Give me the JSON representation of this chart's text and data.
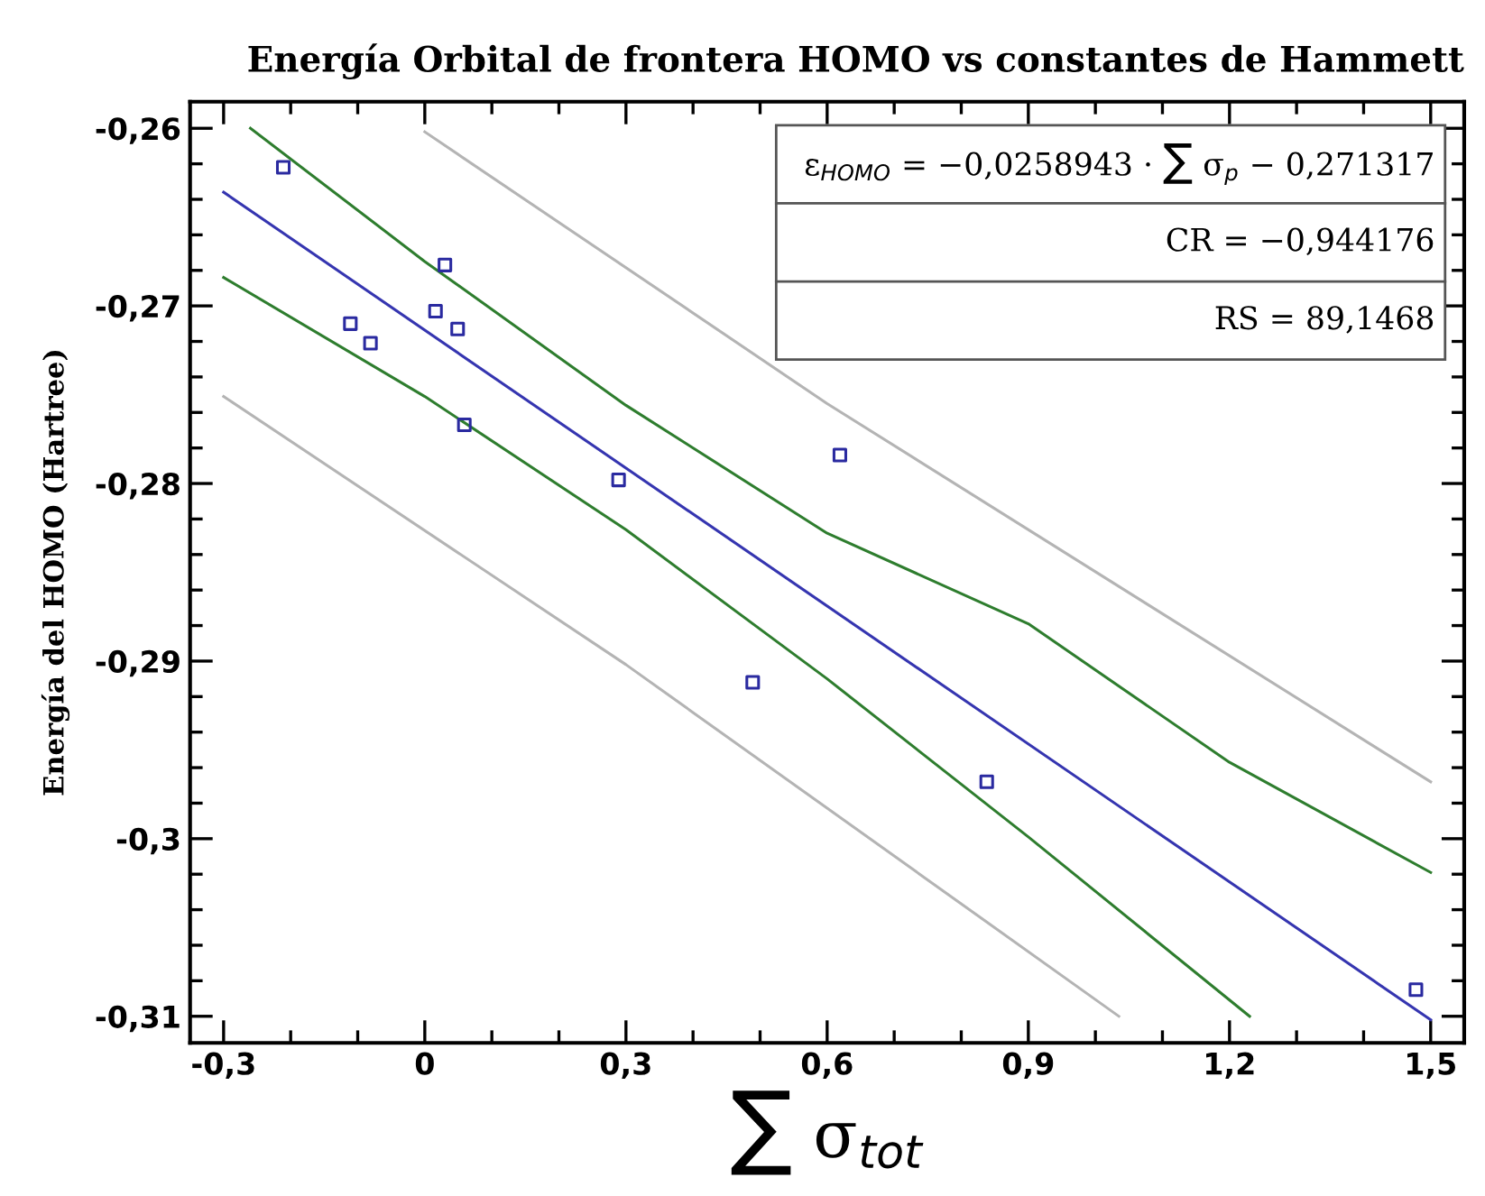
{
  "chart_data": {
    "type": "scatter",
    "title": "Energía Orbital de frontera HOMO vs constantes de Hammett",
    "xlabel": "∑ σ$_{tot}$",
    "ylabel": "Energía del HOMO (Hartree)",
    "annotations": [
      "ε$_{HOMO}$ = −0,0258943 · ∑ σ$_{p}$ − 0,271317",
      "CR = −0,944176",
      "RS = 89,1468"
    ],
    "xlim": [
      -0.35,
      1.55
    ],
    "ylim": [
      -0.3115,
      -0.2585
    ],
    "xticks": [
      {
        "value": -0.3,
        "label": "-0,3"
      },
      0,
      {
        "value": 0.3,
        "label": "0,3"
      },
      {
        "value": 0.6,
        "label": "0,6"
      },
      {
        "value": 0.9,
        "label": "0,9"
      },
      {
        "value": 1.2,
        "label": "1,2"
      },
      {
        "value": 1.5,
        "label": "1,5"
      }
    ],
    "yticks": [
      {
        "value": -0.26,
        "label": "-0,26"
      },
      {
        "value": -0.27,
        "label": "-0,27"
      },
      {
        "value": -0.28,
        "label": "-0,28"
      },
      {
        "value": -0.29,
        "label": "-0,29"
      },
      {
        "value": -0.3,
        "label": "-0,3"
      },
      {
        "value": -0.31,
        "label": "-0,31"
      }
    ],
    "grid": false,
    "series": [
      {
        "marker": "square",
        "color": "#2a2aa0",
        "x": [
          -0.211,
          -0.111,
          -0.081,
          0.016,
          0.03,
          0.049,
          0.059,
          0.289,
          0.619,
          0.489,
          0.838,
          1.478
        ],
        "values": [
          -0.2622,
          -0.271,
          -0.2721,
          -0.2703,
          -0.2677,
          -0.2713,
          -0.2767,
          -0.2798,
          -0.2784,
          -0.2912,
          -0.2968,
          -0.3085
        ]
      },
      {
        "type": "line",
        "marker": "none",
        "color": "#3535b0",
        "x": [
          -0.3,
          1.5
        ],
        "values": [
          -0.2636,
          -0.3102
        ]
      },
      {
        "type": "line",
        "marker": "none",
        "color": "#2e7d2e",
        "x": [
          -0.26,
          0,
          0.3,
          0.6,
          0.9,
          1.2,
          1.5
        ],
        "values": [
          -0.26,
          -0.2675,
          -0.2756,
          -0.2828,
          -0.2879,
          -0.2957,
          -0.3019
        ]
      },
      {
        "type": "line",
        "marker": "none",
        "color": "#2e7d2e",
        "x": [
          -0.3,
          0,
          0.3,
          0.6,
          0.9,
          1.23
        ],
        "values": [
          -0.2684,
          -0.2751,
          -0.2826,
          -0.291,
          -0.2999,
          -0.31
        ]
      },
      {
        "type": "line",
        "marker": "none",
        "color": "#b4b4b4",
        "x": [
          0,
          0.6,
          1.5
        ],
        "values": [
          -0.2602,
          -0.2755,
          -0.2968
        ]
      },
      {
        "type": "line",
        "marker": "none",
        "color": "#b4b4b4",
        "x": [
          -0.3,
          0.3,
          1.035
        ],
        "values": [
          -0.2751,
          -0.2902,
          -0.31
        ]
      }
    ]
  }
}
